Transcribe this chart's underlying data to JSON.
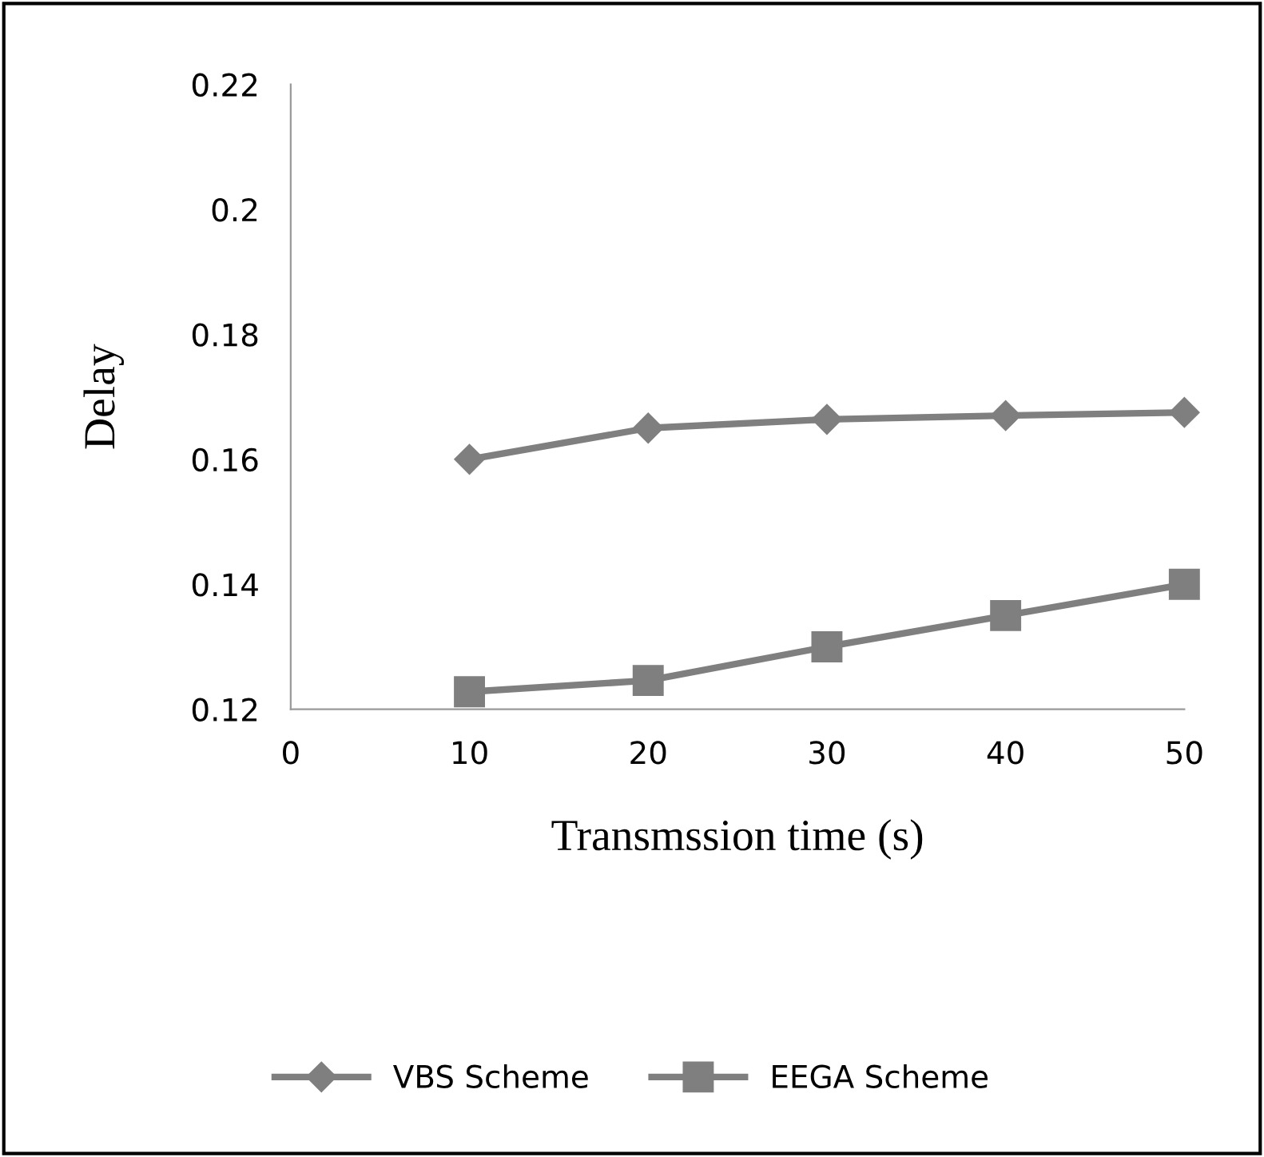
{
  "chart_data": {
    "type": "line",
    "xlabel": "Transmssion time (s)",
    "ylabel": "Delay",
    "x": [
      10,
      20,
      30,
      40,
      50
    ],
    "series": [
      {
        "name": "VBS Scheme",
        "color": "#7f7f7f",
        "marker": "diamond",
        "values": [
          0.16,
          0.165,
          0.1664,
          0.167,
          0.1675
        ]
      },
      {
        "name": "EEGA Scheme",
        "color": "#7f7f7f",
        "marker": "square",
        "values": [
          0.1228,
          0.1246,
          0.13,
          0.135,
          0.14
        ]
      }
    ],
    "xlim": [
      0,
      50
    ],
    "xticks": [
      0,
      10,
      20,
      30,
      40,
      50
    ],
    "ylim": [
      0.12,
      0.22
    ],
    "yticks": [
      0.12,
      0.14,
      0.16,
      0.18,
      0.2,
      0.22
    ],
    "grid": false,
    "legend": "bottom",
    "line_style": "solid"
  }
}
